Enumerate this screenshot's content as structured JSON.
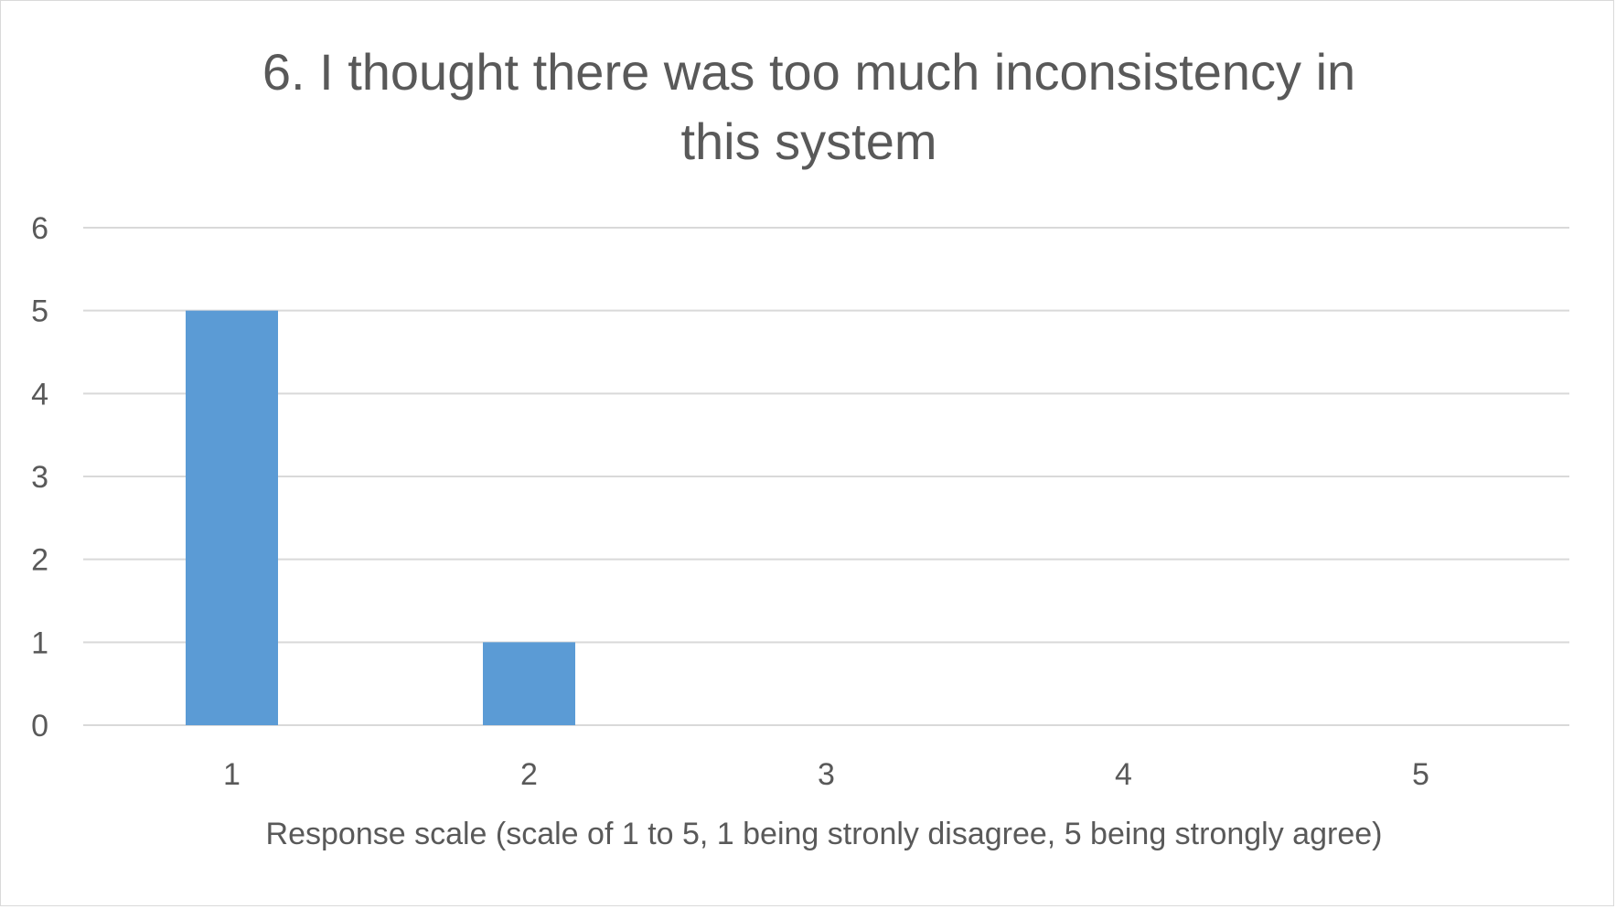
{
  "chart_data": {
    "type": "bar",
    "title": "6. I  thought there was too much inconsistency in\nthis system",
    "categories": [
      "1",
      "2",
      "3",
      "4",
      "5"
    ],
    "values": [
      5,
      1,
      0,
      0,
      0
    ],
    "xlabel": "Response scale (scale of 1 to 5, 1 being stronly disagree, 5 being strongly agree)",
    "ylabel": "",
    "ylim": [
      0,
      6
    ],
    "yticks": [
      "0",
      "1",
      "2",
      "3",
      "4",
      "5",
      "6"
    ],
    "grid": true,
    "legend": "none",
    "bar_color": "#5b9bd5",
    "grid_color": "#d9d9d9",
    "text_color": "#595959"
  }
}
